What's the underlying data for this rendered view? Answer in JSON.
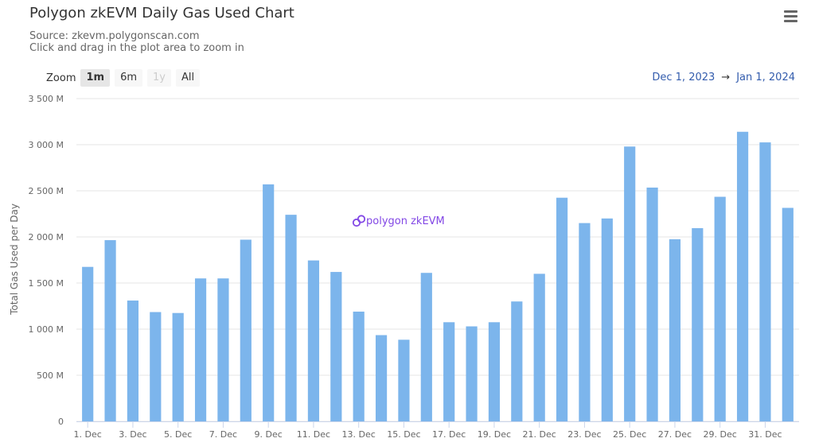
{
  "header": {
    "title": "Polygon zkEVM Daily Gas Used Chart",
    "source": "Source: zkevm.polygonscan.com",
    "hint": "Click and drag in the plot area to zoom in",
    "menu_icon": "hamburger-menu-icon"
  },
  "zoom": {
    "label": "Zoom",
    "buttons": [
      "1m",
      "6m",
      "1y",
      "All"
    ],
    "active": "1m",
    "disabled": [
      "1y"
    ]
  },
  "range": {
    "from": "Dec 1, 2023",
    "separator": "→",
    "to": "Jan 1, 2024"
  },
  "watermark": "polygon zkEVM",
  "colors": {
    "bar": "#7cb5ec",
    "grid": "#e6e6e6",
    "axis_text": "#666666",
    "logo": "#8247e5",
    "range_text": "#335cad"
  },
  "chart_data": {
    "type": "bar",
    "ylabel": "Total Gas Used per Day",
    "xlabel": "",
    "ylim": [
      0,
      3500
    ],
    "yticks": [
      0,
      500,
      1000,
      1500,
      2000,
      2500,
      3000,
      3500
    ],
    "ytick_labels": [
      "0",
      "500 M",
      "1 000 M",
      "1 500 M",
      "2 000 M",
      "2 500 M",
      "3 000 M",
      "3 500 M"
    ],
    "categories": [
      "1. Dec",
      "2. Dec",
      "3. Dec",
      "4. Dec",
      "5. Dec",
      "6. Dec",
      "7. Dec",
      "8. Dec",
      "9. Dec",
      "10. Dec",
      "11. Dec",
      "12. Dec",
      "13. Dec",
      "14. Dec",
      "15. Dec",
      "16. Dec",
      "17. Dec",
      "18. Dec",
      "19. Dec",
      "20. Dec",
      "21. Dec",
      "22. Dec",
      "23. Dec",
      "24. Dec",
      "25. Dec",
      "26. Dec",
      "27. Dec",
      "28. Dec",
      "29. Dec",
      "30. Dec",
      "31. Dec",
      "1. Jan"
    ],
    "xtick_labels": [
      "1. Dec",
      "3. Dec",
      "5. Dec",
      "7. Dec",
      "9. Dec",
      "11. Dec",
      "13. Dec",
      "15. Dec",
      "17. Dec",
      "19. Dec",
      "21. Dec",
      "23. Dec",
      "25. Dec",
      "27. Dec",
      "29. Dec",
      "31. Dec"
    ],
    "values": [
      1675,
      1965,
      1310,
      1185,
      1175,
      1550,
      1550,
      1970,
      2570,
      2240,
      1745,
      1620,
      1190,
      935,
      885,
      1610,
      1075,
      1030,
      1075,
      1300,
      1600,
      2425,
      2150,
      2200,
      2980,
      2535,
      1975,
      2095,
      2435,
      3140,
      3025,
      2315
    ],
    "grid": true,
    "legend": "none"
  }
}
